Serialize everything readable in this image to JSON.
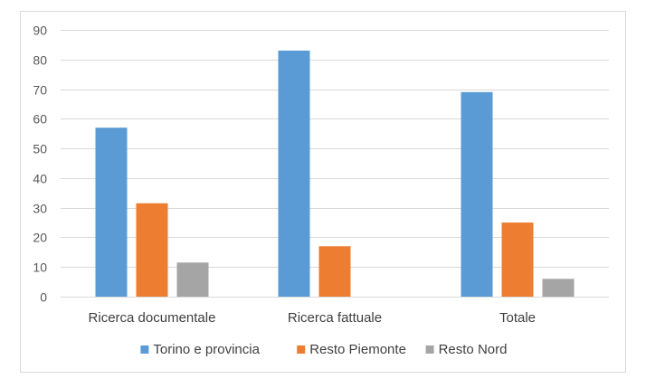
{
  "chart_data": {
    "type": "bar",
    "title": "",
    "xlabel": "",
    "ylabel": "",
    "ylim": [
      0,
      90
    ],
    "yticks": [
      0,
      10,
      20,
      30,
      40,
      50,
      60,
      70,
      80,
      90
    ],
    "grid": true,
    "legend_position": "bottom",
    "categories": [
      "Ricerca documentale",
      "Ricerca fattuale",
      "Totale"
    ],
    "series": [
      {
        "name": "Torino e provincia",
        "color": "#5b9bd5",
        "values": [
          57,
          83,
          69
        ]
      },
      {
        "name": "Resto Piemonte",
        "color": "#ed7d31",
        "values": [
          31.5,
          17,
          25
        ]
      },
      {
        "name": "Resto Nord",
        "color": "#a5a5a5",
        "values": [
          11.5,
          0,
          6
        ]
      }
    ]
  }
}
